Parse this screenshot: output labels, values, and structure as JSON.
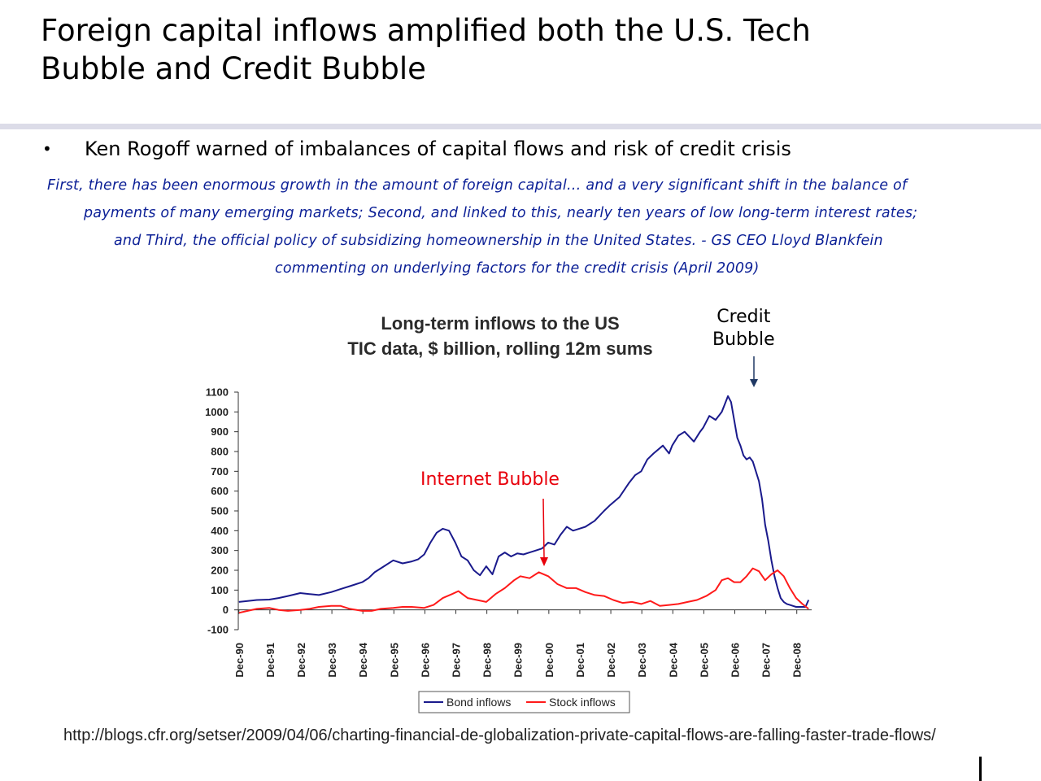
{
  "slide": {
    "title_line1": "Foreign capital inflows amplified both the U.S. Tech",
    "title_line2": "Bubble and Credit Bubble",
    "bullet_symbol": "•",
    "bullet": "Ken Rogoff warned of imbalances of capital flows and risk of credit crisis",
    "quote_lines": [
      "First, there has been enormous growth in the amount of foreign capital… and a very significant shift in the balance of",
      "payments of many emerging markets; Second, and linked to this, nearly ten years of low long-term interest rates;",
      "and Third, the official policy of subsidizing homeownership in the United States.  - GS CEO Lloyd Blankfein",
      "commenting on underlying factors for the credit crisis (April 2009)"
    ],
    "source_url": "http://blogs.cfr.org/setser/2009/04/06/charting-financial-de-globalization-private-capital-flows-are-falling-faster-trade-flows/"
  },
  "annotations": {
    "credit_line1": "Credit",
    "credit_line2": "Bubble",
    "internet": "Internet Bubble",
    "credit_arrow_color": "#1f3864",
    "internet_arrow_color": "#e8000b"
  },
  "chart_data": {
    "type": "line",
    "title_line1": "Long-term inflows to the US",
    "title_line2": "TIC data, $ billion, rolling 12m sums",
    "ylim": [
      -100,
      1100
    ],
    "yticks": [
      -100,
      0,
      100,
      200,
      300,
      400,
      500,
      600,
      700,
      800,
      900,
      1000,
      1100
    ],
    "xlim": [
      1990.9,
      2009.4
    ],
    "xtick_labels": [
      "Dec-90",
      "Dec-91",
      "Dec-92",
      "Dec-93",
      "Dec-94",
      "Dec-95",
      "Dec-96",
      "Dec-97",
      "Dec-98",
      "Dec-99",
      "Dec-00",
      "Dec-01",
      "Dec-02",
      "Dec-03",
      "Dec-04",
      "Dec-05",
      "Dec-06",
      "Dec-07",
      "Dec-08"
    ],
    "xtick_values": [
      1990.92,
      1991.92,
      1992.92,
      1993.92,
      1994.92,
      1995.92,
      1996.92,
      1997.92,
      1998.92,
      1999.92,
      2000.92,
      2001.92,
      2002.92,
      2003.92,
      2004.92,
      2005.92,
      2006.92,
      2007.92,
      2008.92
    ],
    "legend_position": "bottom",
    "series": [
      {
        "name": "Bond inflows",
        "color": "#1a1a8c",
        "x": [
          1990.92,
          1991.2,
          1991.5,
          1991.9,
          1992.2,
          1992.5,
          1992.9,
          1993.2,
          1993.5,
          1993.9,
          1994.2,
          1994.5,
          1994.9,
          1995.1,
          1995.3,
          1995.6,
          1995.9,
          1996.2,
          1996.5,
          1996.7,
          1996.9,
          1997.1,
          1997.3,
          1997.5,
          1997.7,
          1997.9,
          1998.1,
          1998.3,
          1998.5,
          1998.7,
          1998.9,
          1999.1,
          1999.3,
          1999.5,
          1999.7,
          1999.9,
          2000.1,
          2000.3,
          2000.5,
          2000.7,
          2000.9,
          2001.1,
          2001.3,
          2001.5,
          2001.7,
          2001.9,
          2002.1,
          2002.4,
          2002.7,
          2002.9,
          2003.2,
          2003.5,
          2003.7,
          2003.9,
          2004.1,
          2004.3,
          2004.6,
          2004.8,
          2004.9,
          2005.1,
          2005.3,
          2005.6,
          2005.8,
          2005.9,
          2006.1,
          2006.3,
          2006.5,
          2006.6,
          2006.7,
          2006.8,
          2006.9,
          2007.0,
          2007.1,
          2007.2,
          2007.3,
          2007.4,
          2007.5,
          2007.6,
          2007.7,
          2007.8,
          2007.9,
          2008.0,
          2008.1,
          2008.2,
          2008.3,
          2008.4,
          2008.5,
          2008.6,
          2008.7,
          2008.8,
          2008.9,
          2009.0,
          2009.1,
          2009.2,
          2009.3
        ],
        "y": [
          40,
          45,
          50,
          52,
          60,
          70,
          85,
          80,
          75,
          90,
          105,
          120,
          140,
          160,
          190,
          220,
          250,
          235,
          245,
          255,
          280,
          340,
          390,
          410,
          400,
          340,
          270,
          250,
          200,
          175,
          220,
          180,
          270,
          290,
          270,
          285,
          280,
          290,
          300,
          310,
          340,
          330,
          380,
          420,
          400,
          410,
          420,
          450,
          500,
          530,
          570,
          640,
          680,
          700,
          760,
          790,
          830,
          790,
          830,
          880,
          900,
          850,
          900,
          920,
          980,
          960,
          1000,
          1040,
          1080,
          1050,
          960,
          870,
          830,
          780,
          760,
          770,
          750,
          700,
          650,
          560,
          430,
          350,
          250,
          170,
          110,
          60,
          40,
          30,
          25,
          20,
          15,
          15,
          15,
          15,
          50
        ]
      },
      {
        "name": "Stock inflows",
        "color": "#ff1a1a",
        "x": [
          1990.92,
          1991.2,
          1991.5,
          1991.9,
          1992.2,
          1992.5,
          1992.9,
          1993.2,
          1993.5,
          1993.9,
          1994.2,
          1994.5,
          1994.9,
          1995.2,
          1995.5,
          1995.9,
          1996.2,
          1996.5,
          1996.9,
          1997.2,
          1997.5,
          1997.8,
          1998.0,
          1998.3,
          1998.6,
          1998.9,
          1999.2,
          1999.5,
          1999.8,
          2000.0,
          2000.3,
          2000.6,
          2000.9,
          2001.2,
          2001.5,
          2001.8,
          2002.1,
          2002.4,
          2002.7,
          2003.0,
          2003.3,
          2003.6,
          2003.9,
          2004.2,
          2004.5,
          2004.8,
          2005.1,
          2005.4,
          2005.7,
          2006.0,
          2006.3,
          2006.5,
          2006.7,
          2006.9,
          2007.1,
          2007.3,
          2007.5,
          2007.7,
          2007.9,
          2008.1,
          2008.3,
          2008.5,
          2008.7,
          2008.9,
          2009.1,
          2009.3
        ],
        "y": [
          -15,
          -5,
          5,
          10,
          0,
          -5,
          0,
          5,
          15,
          20,
          20,
          5,
          -5,
          -5,
          5,
          10,
          15,
          15,
          10,
          25,
          60,
          80,
          95,
          60,
          50,
          40,
          80,
          110,
          150,
          170,
          160,
          190,
          170,
          130,
          110,
          110,
          90,
          75,
          70,
          50,
          35,
          40,
          30,
          45,
          20,
          25,
          30,
          40,
          50,
          70,
          100,
          150,
          160,
          140,
          140,
          170,
          210,
          195,
          150,
          180,
          200,
          170,
          110,
          60,
          30,
          5
        ]
      }
    ]
  }
}
